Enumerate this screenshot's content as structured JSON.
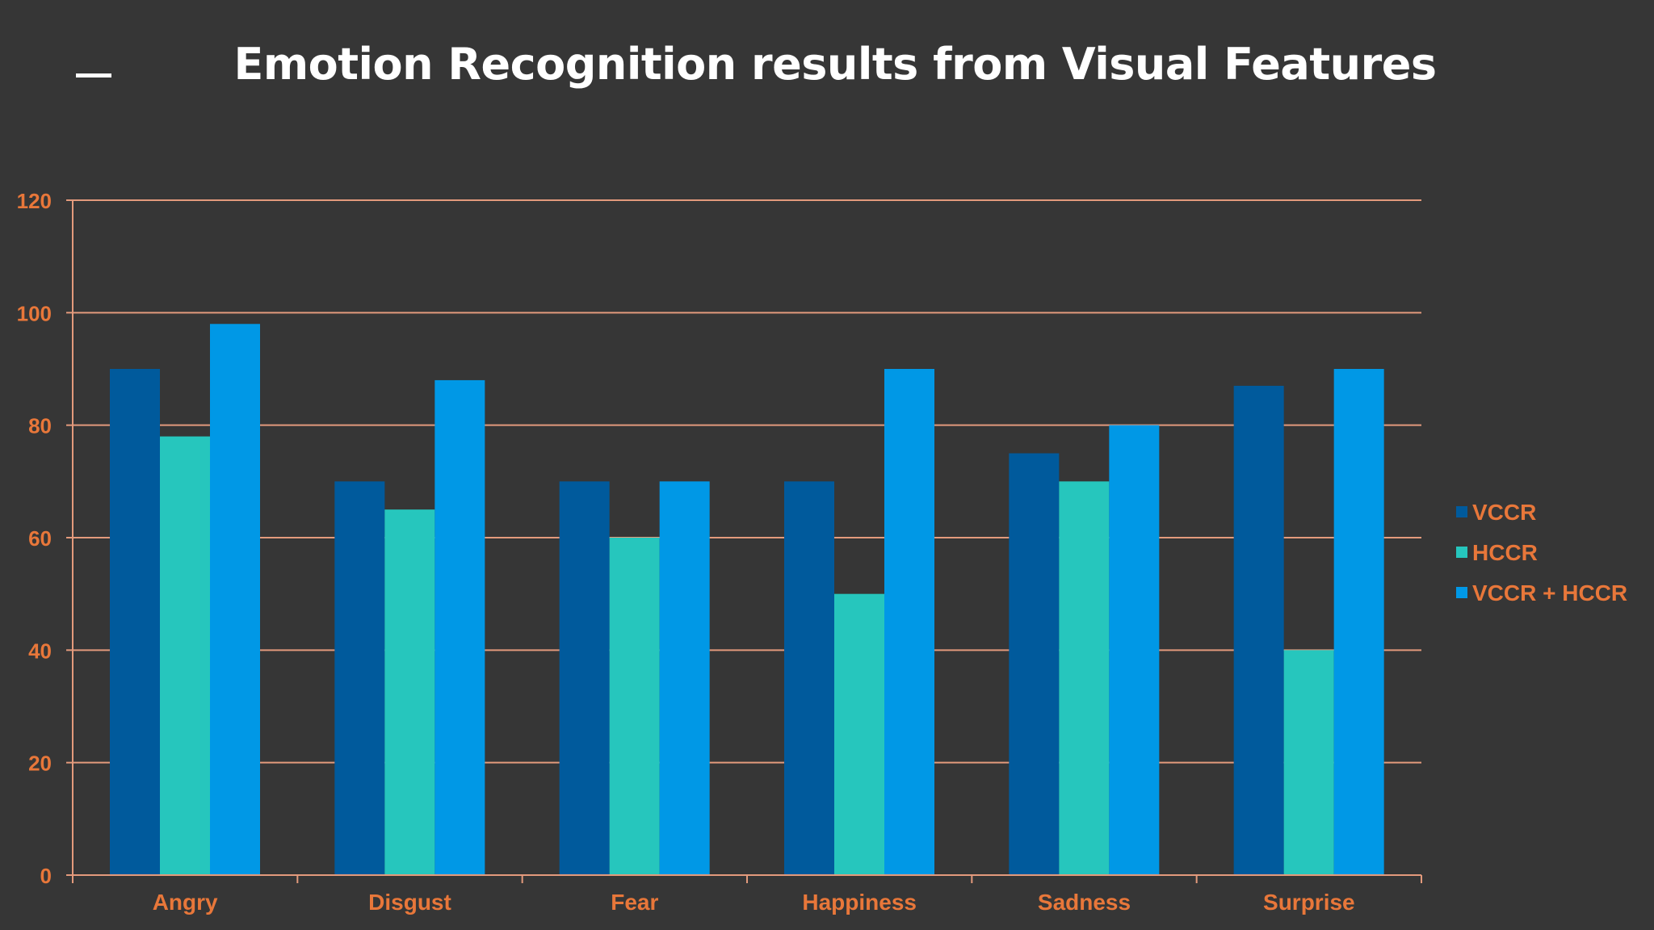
{
  "title": "Emotion Recognition results from Visual Features",
  "colors": {
    "background": "#363636",
    "text_accent": "#e8773a",
    "gridline": "#e39a7c",
    "title": "#ffffff"
  },
  "chart_data": {
    "type": "bar",
    "categories": [
      "Angry",
      "Disgust",
      "Fear",
      "Happiness",
      "Sadness",
      "Surprise"
    ],
    "series": [
      {
        "name": "VCCR",
        "color": "#005a9c",
        "values": [
          90,
          70,
          70,
          70,
          75,
          87
        ]
      },
      {
        "name": "HCCR",
        "color": "#26c6bd",
        "values": [
          78,
          65,
          60,
          50,
          70,
          40
        ]
      },
      {
        "name": "VCCR + HCCR",
        "color": "#0098e6",
        "values": [
          98,
          88,
          70,
          90,
          80,
          90
        ]
      }
    ],
    "ylim": [
      0,
      120
    ],
    "yticks": [
      0,
      20,
      40,
      60,
      80,
      100,
      120
    ],
    "grid": true,
    "legend_position": "right"
  }
}
